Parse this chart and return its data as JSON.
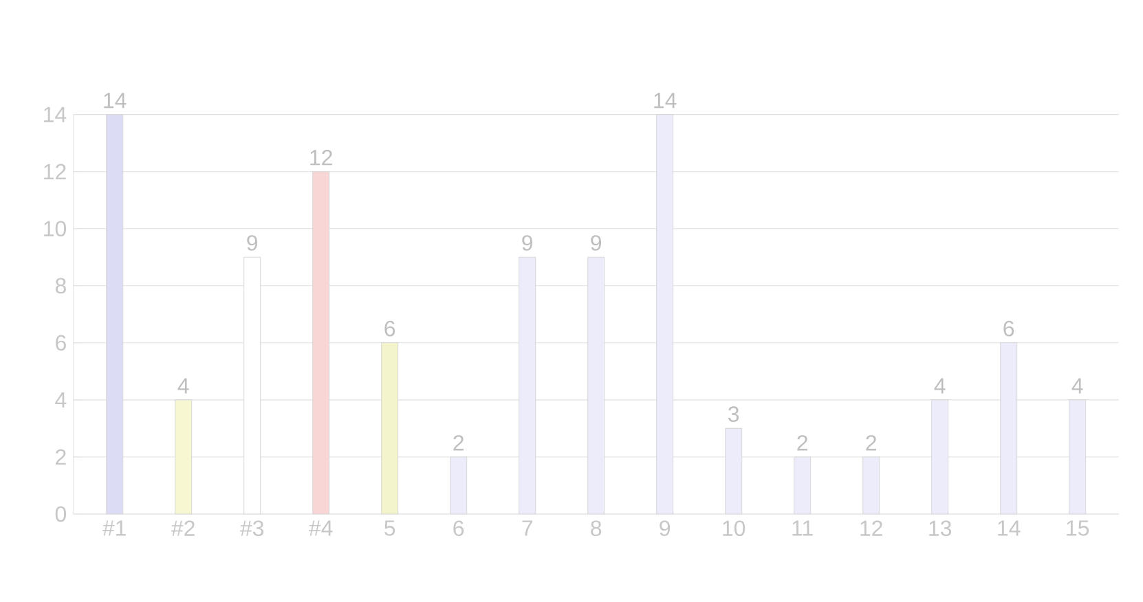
{
  "chart_data": {
    "type": "bar",
    "categories": [
      "#1",
      "#2",
      "#3",
      "#4",
      "5",
      "6",
      "7",
      "8",
      "9",
      "10",
      "11",
      "12",
      "13",
      "14",
      "15"
    ],
    "values": [
      14,
      4,
      9,
      12,
      6,
      2,
      9,
      9,
      14,
      3,
      2,
      2,
      4,
      6,
      4
    ],
    "colors": [
      "#dcdcf5",
      "#f7f7d2",
      "#ffffff",
      "#f8d6d6",
      "#f4f4cc",
      "#ececfa",
      "#ececfa",
      "#ececfa",
      "#ececfa",
      "#ececfa",
      "#ececfa",
      "#ececfa",
      "#ececfa",
      "#ececfa",
      "#ececfa"
    ],
    "ylim": [
      0,
      14
    ],
    "yticks": [
      0,
      2,
      4,
      6,
      8,
      10,
      12,
      14
    ],
    "grid": "y",
    "data_labels": true
  }
}
